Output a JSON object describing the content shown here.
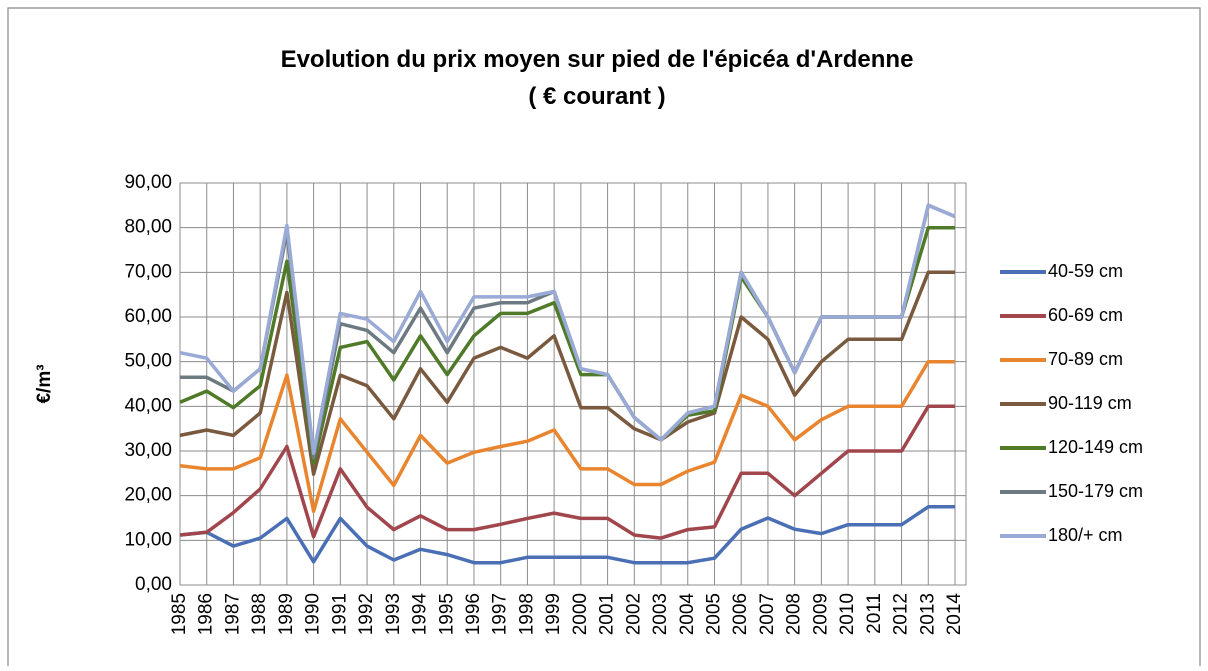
{
  "chart_data": {
    "type": "line",
    "title": "Evolution du prix moyen sur pied de l'épicéa d'Ardenne",
    "subtitle": "( € courant )",
    "y_label": "€/m³",
    "categories": [
      "1985",
      "1986",
      "1987",
      "1988",
      "1989",
      "1990",
      "1991",
      "1992",
      "1993",
      "1994",
      "1995",
      "1996",
      "1997",
      "1998",
      "1999",
      "2000",
      "2001",
      "2002",
      "2003",
      "2004",
      "2005",
      "2006",
      "2007",
      "2008",
      "2009",
      "2010",
      "2011",
      "2012",
      "2013",
      "2014"
    ],
    "ylim": [
      0,
      90
    ],
    "yticks": [
      {
        "value": 0,
        "label": "0,00"
      },
      {
        "value": 10,
        "label": "10,00"
      },
      {
        "value": 20,
        "label": "20,00"
      },
      {
        "value": 30,
        "label": "30,00"
      },
      {
        "value": 40,
        "label": "40,00"
      },
      {
        "value": 50,
        "label": "50,00"
      },
      {
        "value": 60,
        "label": "60,00"
      },
      {
        "value": 70,
        "label": "70,00"
      },
      {
        "value": 80,
        "label": "80,00"
      },
      {
        "value": 90,
        "label": "90,00"
      }
    ],
    "grid": true,
    "legend": "right",
    "series": [
      {
        "name": "40-59 cm",
        "color": "#4a6fb5",
        "values": [
          11.2,
          11.8,
          8.7,
          10.5,
          14.9,
          5.2,
          14.9,
          8.7,
          5.6,
          8,
          6.8,
          5,
          5,
          6.2,
          6.2,
          6.2,
          6.2,
          5,
          5,
          5,
          6,
          12.5,
          15,
          12.5,
          11.5,
          13.5,
          13.5,
          13.5,
          17.5,
          17.5
        ]
      },
      {
        "name": "60-69 cm",
        "color": "#a0464c",
        "values": [
          11.2,
          11.8,
          16.2,
          21.5,
          31,
          10.8,
          26,
          17.4,
          12.4,
          15.5,
          12.4,
          12.4,
          13.6,
          14.9,
          16.1,
          14.9,
          14.9,
          11.2,
          10.5,
          12.4,
          13,
          25,
          25,
          20,
          25,
          30,
          30,
          30,
          40,
          40
        ]
      },
      {
        "name": "70-89 cm",
        "color": "#e8852e",
        "values": [
          26.7,
          26,
          26,
          28.5,
          47,
          16.5,
          37.2,
          29.7,
          22.3,
          33.5,
          27.3,
          29.7,
          31,
          32.2,
          34.7,
          26,
          26,
          22.5,
          22.5,
          25.5,
          27.5,
          42.5,
          40,
          32.5,
          37,
          40,
          40,
          40,
          50,
          50
        ]
      },
      {
        "name": "90-119 cm",
        "color": "#7a5a3e",
        "values": [
          33.5,
          34.7,
          33.5,
          38.5,
          65.5,
          24.8,
          47,
          44.6,
          37.2,
          48.4,
          40.9,
          50.8,
          53.2,
          50.8,
          55.8,
          39.7,
          39.7,
          35,
          32.5,
          36.5,
          38.5,
          60,
          55,
          42.5,
          50,
          55,
          55,
          55,
          70,
          70
        ]
      },
      {
        "name": "120-149 cm",
        "color": "#4f7a28",
        "values": [
          40.9,
          43.4,
          39.7,
          44.6,
          72.5,
          27.3,
          53.2,
          54.5,
          45.9,
          55.8,
          47.1,
          55.8,
          60.8,
          60.8,
          63.2,
          47.1,
          47.1,
          37.5,
          32.5,
          38,
          39,
          69,
          60,
          47.5,
          60,
          60,
          60,
          60,
          80,
          80
        ]
      },
      {
        "name": "150-179 cm",
        "color": "#6d7a82",
        "values": [
          46.5,
          46.5,
          43.4,
          48.4,
          79,
          28.5,
          58.5,
          57,
          52,
          62,
          52,
          62,
          63.2,
          63.2,
          65.7,
          48.4,
          47.1,
          37.5,
          32.5,
          38.5,
          40,
          70,
          60,
          47.5,
          60,
          60,
          60,
          60,
          85,
          82.5
        ]
      },
      {
        "name": "180/+ cm",
        "color": "#9aaad6",
        "values": [
          52,
          50.8,
          43.4,
          48.4,
          80.5,
          29.5,
          60.8,
          59.5,
          54.5,
          65.7,
          54.5,
          64.5,
          64.5,
          64.5,
          65.7,
          48.4,
          47.1,
          37.5,
          32.5,
          38.5,
          40,
          70,
          60,
          47.5,
          60,
          60,
          60,
          60,
          85,
          82.5
        ]
      }
    ]
  }
}
